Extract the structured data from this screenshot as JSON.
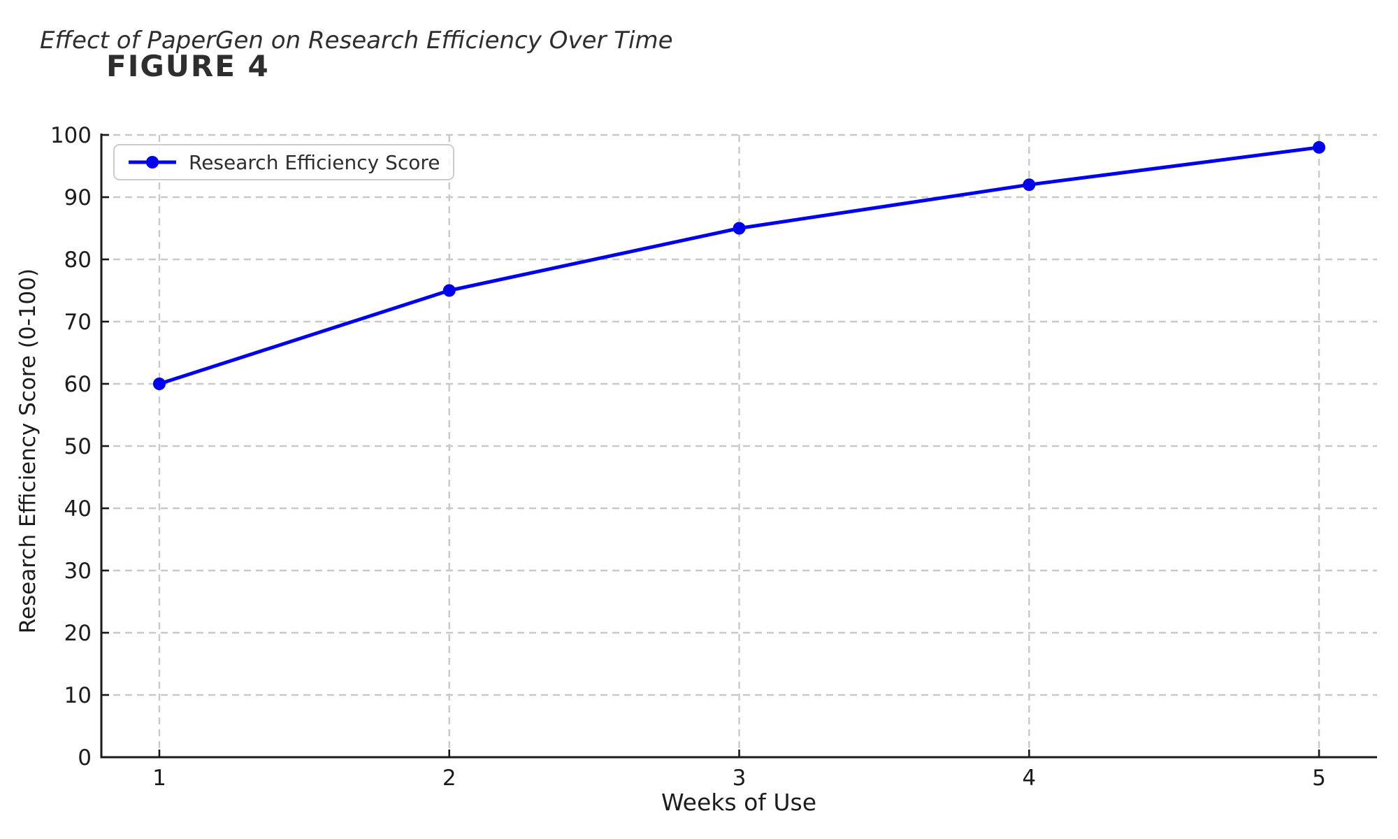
{
  "page": {
    "background": "#ffffff"
  },
  "chart": {
    "title": "Effect of PaperGen on Research Efficiency Over Time",
    "figure_label": "FIGURE 4",
    "xlabel": "Weeks of Use",
    "ylabel": "Research Efficiency Score (0-100)",
    "legend_label": "Research Efficiency Score"
  },
  "chart_data": {
    "type": "line",
    "title": "Effect of PaperGen on Research Efficiency Over Time",
    "figure_label": "FIGURE 4",
    "xlabel": "Weeks of Use",
    "ylabel": "Research Efficiency Score (0-100)",
    "series": [
      {
        "name": "Research Efficiency Score",
        "x": [
          1,
          2,
          3,
          4,
          5
        ],
        "values": [
          60,
          75,
          85,
          92,
          98
        ],
        "color": "#0000f0",
        "marker": "circle",
        "line_width": 5,
        "marker_radius": 9
      }
    ],
    "xticks": [
      1,
      2,
      3,
      4,
      5
    ],
    "yticks": [
      0,
      10,
      20,
      30,
      40,
      50,
      60,
      70,
      80,
      90,
      100
    ],
    "xlim": [
      0.8,
      5.2
    ],
    "ylim": [
      0,
      100
    ],
    "grid": true,
    "grid_style": "dashed",
    "legend_position": "upper left",
    "colors": {
      "line": "#0000f0",
      "grid": "#c9c9c9",
      "spine": "#1a1a1a",
      "tick_text": "#1c1c1c",
      "title_text": "#2e2e2e",
      "legend_border": "#cccccc"
    }
  }
}
